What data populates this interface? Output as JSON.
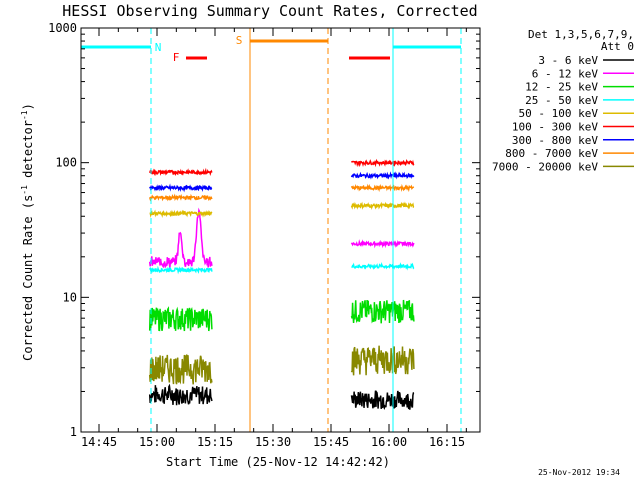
{
  "chart_data": {
    "type": "line",
    "title": "HESSI Observing Summary Count Rates, Corrected",
    "xlabel": "Start Time (25-Nov-12 14:42:42)",
    "ylabel_main": "Corrected Count Rate (s",
    "ylabel_sup1": "-1",
    "ylabel_mid": " detector",
    "ylabel_sup2": "-1",
    "ylabel_end": ")",
    "yscale": "log",
    "ylim": [
      1,
      1000
    ],
    "xlim_minutes": [
      14.7,
      16.33
    ],
    "x_ticks": [
      "14:45",
      "15:00",
      "15:15",
      "15:30",
      "15:45",
      "16:00",
      "16:15"
    ],
    "y_ticks": [
      "1",
      "10",
      "100",
      "1000"
    ],
    "date_stamp": "25-Nov-2012 19:34",
    "legend": {
      "header1": "Det 1,3,5,6,7,9,",
      "header2": "Att 0",
      "position": "right"
    },
    "series": [
      {
        "name": "3 - 6 keV",
        "color": "#000000",
        "level1": 1.0,
        "level2": 1.0
      },
      {
        "name": "6 - 12 keV",
        "color": "#ff00ff",
        "level1": 28,
        "level2": 25
      },
      {
        "name": "12 - 25 keV",
        "color": "#00dd00",
        "level1": 7,
        "level2": 8
      },
      {
        "name": "25 - 50 keV",
        "color": "#00ffff",
        "level1": 16,
        "level2": 17
      },
      {
        "name": "50 - 100 keV",
        "color": "#ddbb00",
        "level1": 42,
        "level2": 48
      },
      {
        "name": "100 - 300 keV",
        "color": "#ff0000",
        "level1": 85,
        "level2": 100
      },
      {
        "name": "300 - 800 keV",
        "color": "#0000ff",
        "level1": 65,
        "level2": 80
      },
      {
        "name": "800 - 7000 keV",
        "color": "#ff8800",
        "level1": 55,
        "level2": 65
      },
      {
        "name": "7000 - 20000 keV",
        "color": "#888800",
        "level1": 3,
        "level2": 3.5
      }
    ],
    "flags": [
      {
        "label": "N",
        "color": "#00ffff"
      },
      {
        "label": "F",
        "color": "#ff0000"
      },
      {
        "label": "S",
        "color": "#ff8800"
      }
    ]
  }
}
